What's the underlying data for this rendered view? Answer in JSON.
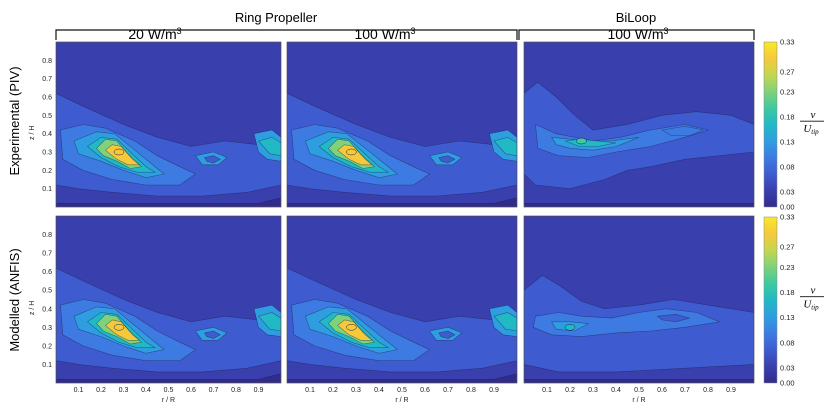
{
  "figure": {
    "group_left_title": "Ring Propeller",
    "group_right_title": "BiLoop",
    "col_titles": [
      {
        "value": "20 W/m",
        "sup": "3"
      },
      {
        "value": "100 W/m",
        "sup": "3"
      },
      {
        "value": "100 W/m",
        "sup": "3"
      }
    ],
    "row_labels": [
      "Experimental (PIV)",
      "Modelled (ANFIS)"
    ],
    "colorbar_label_num": "v",
    "colorbar_label_den": "U",
    "colorbar_label_sub": "tip"
  },
  "chart_data": {
    "type": "heatmap",
    "title": "",
    "xlabel": "r / R",
    "ylabel": "z / H",
    "xticks": [
      "0.1",
      "0.2",
      "0.3",
      "0.4",
      "0.5",
      "0.6",
      "0.7",
      "0.8",
      "0.9"
    ],
    "yticks": [
      "0.1",
      "0.2",
      "0.3",
      "0.4",
      "0.5",
      "0.6",
      "0.7",
      "0.8"
    ],
    "xlim": [
      0,
      1
    ],
    "ylim": [
      0,
      0.9
    ],
    "colorbar_ticks": [
      "0.33",
      "0.27",
      "0.23",
      "0.18",
      "0.13",
      "0.08",
      "0.03",
      "0.00"
    ],
    "colorbar_range": [
      0,
      0.33
    ],
    "colormap": [
      "#312c8c",
      "#3a3fae",
      "#3f5bd0",
      "#3d7be2",
      "#2f9ee0",
      "#22b9c6",
      "#3ec99f",
      "#7fd27a",
      "#c5d650",
      "#f5c93a",
      "#f8e82a"
    ],
    "panels": [
      {
        "row": "Experimental (PIV)",
        "column": "Ring Propeller 20 W/m3",
        "peak_velocity": 0.3,
        "peak_location": [
          0.28,
          0.3
        ]
      },
      {
        "row": "Experimental (PIV)",
        "column": "Ring Propeller 100 W/m3",
        "peak_velocity": 0.3,
        "peak_location": [
          0.28,
          0.3
        ]
      },
      {
        "row": "Experimental (PIV)",
        "column": "BiLoop 100 W/m3",
        "peak_velocity": 0.2,
        "peak_location": [
          0.25,
          0.36
        ]
      },
      {
        "row": "Modelled (ANFIS)",
        "column": "Ring Propeller 20 W/m3",
        "peak_velocity": 0.29,
        "peak_location": [
          0.28,
          0.3
        ]
      },
      {
        "row": "Modelled (ANFIS)",
        "column": "Ring Propeller 100 W/m3",
        "peak_velocity": 0.29,
        "peak_location": [
          0.28,
          0.3
        ]
      },
      {
        "row": "Modelled (ANFIS)",
        "column": "BiLoop 100 W/m3",
        "peak_velocity": 0.15,
        "peak_location": [
          0.2,
          0.3
        ]
      }
    ]
  }
}
